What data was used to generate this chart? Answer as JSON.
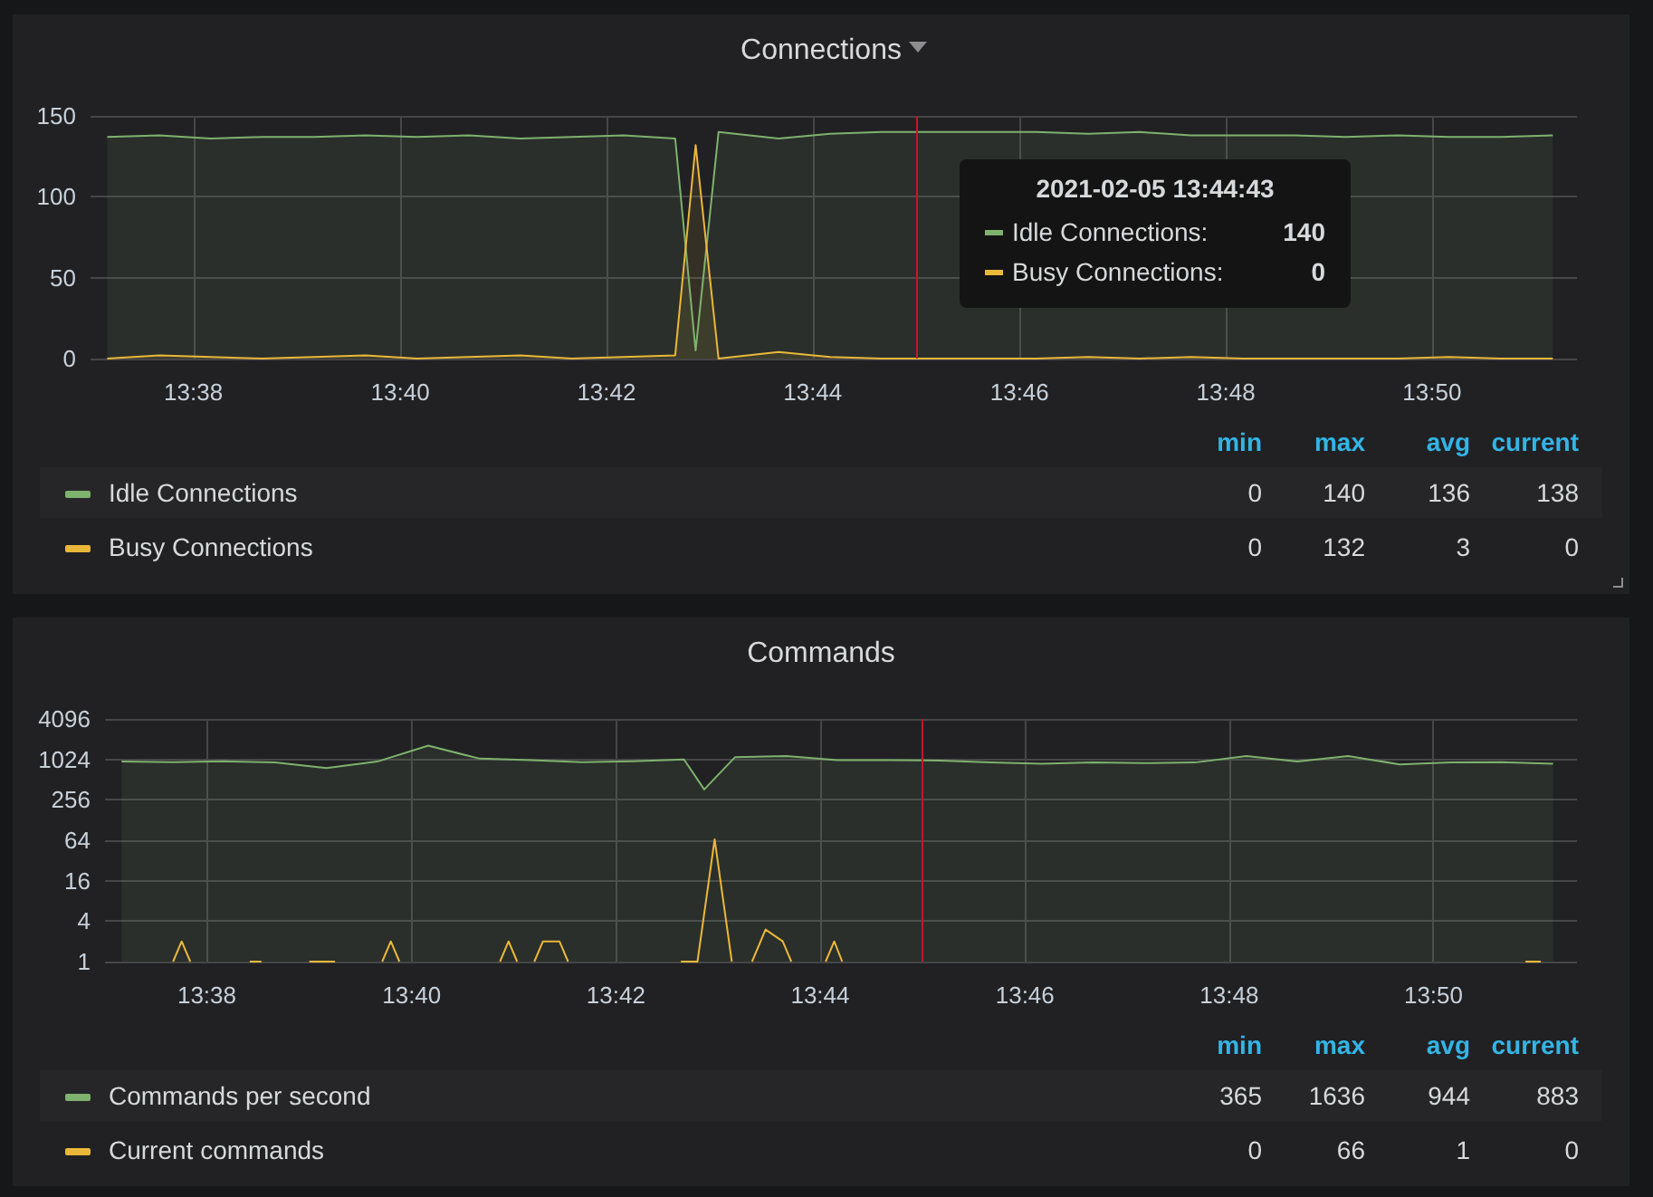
{
  "chart_data": [
    {
      "type": "area",
      "title": "Connections",
      "xlim": [
        13.6167,
        13.8567
      ],
      "xticks": [
        {
          "value": 13.6333,
          "label": "13:38"
        },
        {
          "value": 13.6667,
          "label": "13:40"
        },
        {
          "value": 13.7,
          "label": "13:42"
        },
        {
          "value": 13.7333,
          "label": "13:44"
        },
        {
          "value": 13.7667,
          "label": "13:46"
        },
        {
          "value": 13.8,
          "label": "13:48"
        },
        {
          "value": 13.8333,
          "label": "13:50"
        }
      ],
      "ylim": [
        0,
        150
      ],
      "yticks": [
        0,
        50,
        100,
        150
      ],
      "grid": true,
      "legend": "bottom",
      "series": [
        {
          "name": "Idle Connections",
          "color": "#7eb26d",
          "x": [
            13.6194,
            13.6278,
            13.6361,
            13.6444,
            13.6528,
            13.6611,
            13.6694,
            13.6778,
            13.6861,
            13.6944,
            13.7028,
            13.7111,
            13.7144,
            13.7181,
            13.7278,
            13.7361,
            13.7444,
            13.7528,
            13.7611,
            13.7694,
            13.7778,
            13.7861,
            13.7944,
            13.8028,
            13.8111,
            13.8194,
            13.8278,
            13.8361,
            13.8444,
            13.8528
          ],
          "values": [
            137,
            138,
            136,
            137,
            137,
            138,
            137,
            138,
            136,
            137,
            138,
            136,
            5,
            140,
            136,
            139,
            140,
            140,
            140,
            140,
            139,
            140,
            138,
            138,
            138,
            137,
            138,
            137,
            137,
            138
          ]
        },
        {
          "name": "Busy Connections",
          "color": "#eab839",
          "x": [
            13.6194,
            13.6278,
            13.6361,
            13.6444,
            13.6528,
            13.6611,
            13.6694,
            13.6778,
            13.6861,
            13.6944,
            13.7028,
            13.7111,
            13.7144,
            13.7181,
            13.7278,
            13.7361,
            13.7444,
            13.7528,
            13.7611,
            13.7694,
            13.7778,
            13.7861,
            13.7944,
            13.8028,
            13.8111,
            13.8194,
            13.8278,
            13.8361,
            13.8444,
            13.8528
          ],
          "values": [
            0,
            2,
            1,
            0,
            1,
            2,
            0,
            1,
            2,
            0,
            1,
            2,
            132,
            0,
            4,
            1,
            0,
            0,
            0,
            0,
            1,
            0,
            1,
            0,
            0,
            0,
            0,
            1,
            0,
            0
          ]
        }
      ],
      "ref_lines": [
        {
          "axis": "x",
          "value": 13.75,
          "color": "#c4162a"
        }
      ],
      "annotations": [
        "min",
        "max",
        "avg",
        "current",
        "0",
        "140",
        "136",
        "138",
        "0",
        "132",
        "3",
        "0",
        "2021-02-05 13:44:43",
        "Idle Connections:",
        "140",
        "Busy Connections:",
        "0"
      ]
    },
    {
      "type": "area",
      "title": "Commands",
      "xlim": [
        13.6167,
        13.8567
      ],
      "xticks": [
        {
          "value": 13.6333,
          "label": "13:38"
        },
        {
          "value": 13.6667,
          "label": "13:40"
        },
        {
          "value": 13.7,
          "label": "13:42"
        },
        {
          "value": 13.7333,
          "label": "13:44"
        },
        {
          "value": 13.7667,
          "label": "13:46"
        },
        {
          "value": 13.8,
          "label": "13:48"
        },
        {
          "value": 13.8333,
          "label": "13:50"
        }
      ],
      "ylim": [
        1,
        4096
      ],
      "yticks": [
        1,
        4,
        16,
        64,
        256,
        1024,
        4096
      ],
      "log": true,
      "grid": true,
      "legend": "bottom",
      "series": [
        {
          "name": "Commands per second",
          "color": "#7eb26d",
          "x": [
            13.6194,
            13.6278,
            13.6361,
            13.6444,
            13.6528,
            13.6611,
            13.6694,
            13.6778,
            13.6861,
            13.6944,
            13.7028,
            13.7111,
            13.7144,
            13.7194,
            13.7278,
            13.7361,
            13.7444,
            13.7528,
            13.7611,
            13.7694,
            13.7778,
            13.7861,
            13.7944,
            13.8028,
            13.8111,
            13.8194,
            13.8278,
            13.8361,
            13.8444,
            13.8528
          ],
          "values": [
            950,
            930,
            960,
            920,
            760,
            950,
            1636,
            1050,
            1000,
            930,
            960,
            1020,
            365,
            1100,
            1150,
            1000,
            1000,
            980,
            920,
            880,
            920,
            900,
            920,
            1150,
            950,
            1150,
            860,
            920,
            930,
            883
          ]
        },
        {
          "name": "Current commands",
          "type": "line",
          "color": "#eab839",
          "x": [
            13.6278,
            13.6292,
            13.6306,
            13.6333,
            13.6403,
            13.6422,
            13.6444,
            13.65,
            13.6542,
            13.6583,
            13.6619,
            13.6633,
            13.6647,
            13.6667,
            13.6811,
            13.6825,
            13.6839,
            13.685,
            13.6867,
            13.6881,
            13.6908,
            13.6922,
            13.6944,
            13.7106,
            13.7133,
            13.7161,
            13.7189,
            13.72,
            13.7222,
            13.7244,
            13.7272,
            13.7286,
            13.73,
            13.7342,
            13.7356,
            13.7369,
            13.74,
            13.8483,
            13.8508
          ],
          "values": [
            1,
            2,
            1,
            null,
            1,
            1,
            null,
            1,
            1,
            null,
            1,
            2,
            1,
            null,
            1,
            2,
            1,
            null,
            1,
            2,
            2,
            1,
            null,
            1,
            1,
            66,
            1,
            null,
            1,
            3,
            2,
            1,
            null,
            1,
            2,
            1,
            null,
            1,
            1
          ]
        }
      ],
      "ref_lines": [
        {
          "axis": "x",
          "value": 13.75,
          "color": "#c4162a"
        }
      ],
      "annotations": [
        "min",
        "max",
        "avg",
        "current",
        "365",
        "1636",
        "944",
        "883",
        "0",
        "66",
        "1",
        "0"
      ]
    }
  ]
}
